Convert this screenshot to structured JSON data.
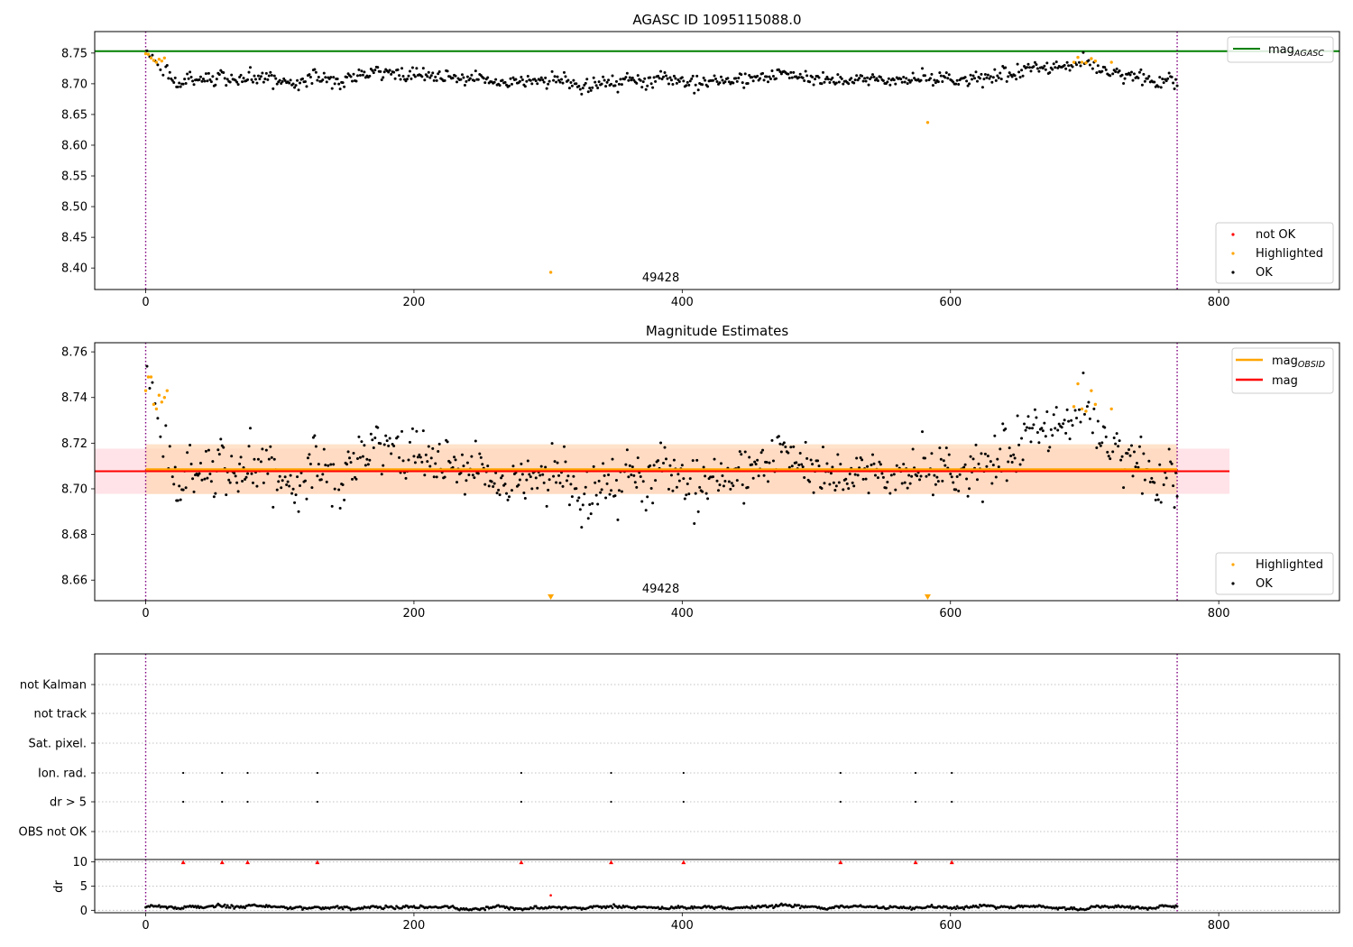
{
  "colors": {
    "ok": "#000000",
    "highlighted": "#ffa500",
    "not_ok": "#ff0000",
    "agasc_line": "#008000",
    "mag_line": "#ff0000",
    "obsid_line": "#ffa500",
    "obs_boundary": "#800080",
    "band_mag": "#ffc0cb",
    "band_obsid": "#ffd7b4"
  },
  "chart_data": [
    {
      "type": "scatter",
      "title": "AGASC ID 1095115088.0",
      "xlim": [
        -38,
        890
      ],
      "ylim": [
        8.365,
        8.785
      ],
      "xticks": [
        0,
        200,
        400,
        600,
        800
      ],
      "yticks": [
        8.4,
        8.45,
        8.5,
        8.55,
        8.6,
        8.65,
        8.7,
        8.75
      ],
      "ytick_labels": [
        "8.40",
        "8.45",
        "8.50",
        "8.55",
        "8.60",
        "8.65",
        "8.70",
        "8.75"
      ],
      "obs_boundaries": [
        0,
        769
      ],
      "obsid_label": "49428",
      "obsid_label_x": 384,
      "hlines": [
        {
          "name": "mag_AGASC",
          "y": 8.753,
          "color": "#008000"
        }
      ],
      "ok_series": {
        "name": "OK",
        "n": 770,
        "baseline": 8.7057,
        "noise": 0.0058,
        "bumps": [
          [
            0,
            0.035,
            6
          ],
          [
            10,
            0.02,
            10
          ],
          [
            180,
            0.01,
            30
          ],
          [
            480,
            0.008,
            25
          ],
          [
            690,
            0.025,
            40
          ]
        ]
      },
      "highlighted": [
        [
          0,
          8.749
        ],
        [
          2,
          8.748
        ],
        [
          4,
          8.742
        ],
        [
          6,
          8.738
        ],
        [
          8,
          8.735
        ],
        [
          10,
          8.74
        ],
        [
          12,
          8.737
        ],
        [
          14,
          8.742
        ],
        [
          302,
          8.393
        ],
        [
          583,
          8.637
        ],
        [
          692,
          8.735
        ],
        [
          695,
          8.743
        ],
        [
          698,
          8.735
        ],
        [
          701,
          8.734
        ],
        [
          705,
          8.741
        ],
        [
          708,
          8.737
        ],
        [
          720,
          8.735
        ]
      ],
      "legend_top": [
        {
          "label": "mag",
          "sub": "AGASC",
          "kind": "line",
          "color": "#008000"
        }
      ],
      "legend_bottom": [
        {
          "label": "not OK",
          "kind": "dot",
          "color": "#ff0000"
        },
        {
          "label": "Highlighted",
          "kind": "dot",
          "color": "#ffa500"
        },
        {
          "label": "OK",
          "kind": "dot",
          "color": "#000000"
        }
      ]
    },
    {
      "type": "scatter",
      "title": "Magnitude Estimates",
      "xlim": [
        -38,
        890
      ],
      "ylim": [
        8.651,
        8.764
      ],
      "xticks": [
        0,
        200,
        400,
        600,
        800
      ],
      "yticks": [
        8.66,
        8.68,
        8.7,
        8.72,
        8.74,
        8.76
      ],
      "ytick_labels": [
        "8.66",
        "8.68",
        "8.70",
        "8.72",
        "8.74",
        "8.76"
      ],
      "obs_boundaries": [
        0,
        769
      ],
      "obsid_label": "49428",
      "obsid_label_x": 384,
      "hlines": [
        {
          "name": "mag",
          "y": 8.7077,
          "color": "#ff0000",
          "band": [
            8.6978,
            8.7176
          ],
          "range": [
            -38,
            808
          ]
        },
        {
          "name": "mag_OBSID",
          "y": 8.7085,
          "color": "#ffa500",
          "band": [
            8.6977,
            8.7195
          ],
          "range": [
            0,
            769
          ]
        }
      ],
      "ok_series": {
        "name": "OK",
        "n": 770,
        "baseline": 8.7057,
        "noise": 0.0058,
        "bumps": [
          [
            0,
            0.035,
            6
          ],
          [
            10,
            0.02,
            10
          ],
          [
            180,
            0.01,
            30
          ],
          [
            480,
            0.008,
            25
          ],
          [
            690,
            0.025,
            40
          ]
        ]
      },
      "highlighted": [
        [
          0,
          8.743
        ],
        [
          2,
          8.749
        ],
        [
          4,
          8.749
        ],
        [
          6,
          8.737
        ],
        [
          8,
          8.735
        ],
        [
          10,
          8.741
        ],
        [
          12,
          8.738
        ],
        [
          14,
          8.74
        ],
        [
          16,
          8.743
        ],
        [
          692,
          8.736
        ],
        [
          695,
          8.746
        ],
        [
          698,
          8.735
        ],
        [
          701,
          8.734
        ],
        [
          705,
          8.743
        ],
        [
          708,
          8.737
        ],
        [
          720,
          8.735
        ]
      ],
      "offscale_markers": [
        302,
        583
      ],
      "legend_top": [
        {
          "label": "mag",
          "sub": "OBSID",
          "kind": "line",
          "color": "#ffa500"
        },
        {
          "label": "mag",
          "sub": "",
          "kind": "line",
          "color": "#ff0000"
        }
      ],
      "legend_bottom": [
        {
          "label": "Highlighted",
          "kind": "dot",
          "color": "#ffa500"
        },
        {
          "label": "OK",
          "kind": "dot",
          "color": "#000000"
        }
      ]
    },
    {
      "type": "scatter",
      "title": "",
      "xlim": [
        -38,
        890
      ],
      "flag_rows": [
        "not Kalman",
        "not track",
        "Sat. pixel.",
        "Ion. rad.",
        "dr > 5",
        "OBS not OK"
      ],
      "flags": {
        "Ion. rad.": [
          28,
          57,
          76,
          128,
          280,
          347,
          401,
          518,
          574,
          601
        ],
        "dr > 5": [
          28,
          57,
          76,
          128,
          280,
          347,
          401,
          518,
          574,
          601
        ]
      },
      "obs_boundaries": [
        0,
        769
      ]
    },
    {
      "type": "scatter",
      "title": "",
      "ylabel": "dr",
      "xlim": [
        -38,
        890
      ],
      "ylim": [
        -0.5,
        10.5
      ],
      "xticks": [
        0,
        200,
        400,
        600,
        800
      ],
      "yticks": [
        0,
        5,
        10
      ],
      "ytick_labels": [
        "0",
        "5",
        "10"
      ],
      "obs_boundaries": [
        0,
        769
      ],
      "dr_series": {
        "n": 770,
        "baseline": 0.6,
        "noise": 0.25
      },
      "dr_outliers": [
        [
          302,
          3.1
        ]
      ],
      "dr_capped": [
        28,
        57,
        76,
        128,
        280,
        347,
        401,
        518,
        574,
        601
      ],
      "dr_cap_value": 10
    }
  ]
}
